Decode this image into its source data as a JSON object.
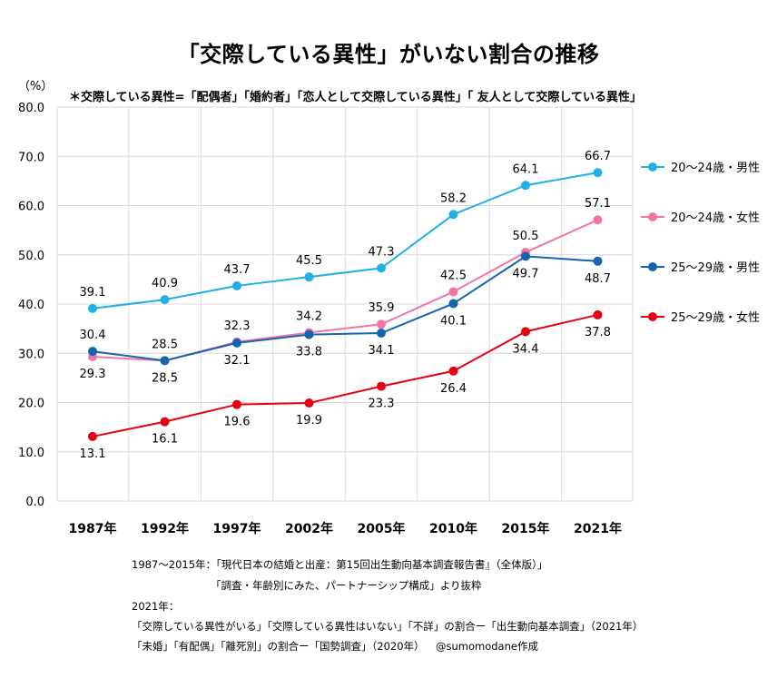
{
  "title": "「交際している異性」がいない割合の推移",
  "unit_label": "（%）",
  "note": "＊交際している異性=「配偶者」「婚約者」「恋人として交際している異性」「 友人として交際している異性」",
  "chart_data": {
    "type": "line",
    "categories": [
      "1987年",
      "1992年",
      "1997年",
      "2002年",
      "2005年",
      "2010年",
      "2015年",
      "2021年"
    ],
    "ylim": [
      0,
      80
    ],
    "yticks": [
      "0.0",
      "10.0",
      "20.0",
      "30.0",
      "40.0",
      "50.0",
      "60.0",
      "70.0",
      "80.0"
    ],
    "grid": true,
    "legend_position": "right",
    "series": [
      {
        "name": "20〜24歳・男性",
        "color": "#1fb0e6",
        "values": [
          39.1,
          40.9,
          43.7,
          45.5,
          47.3,
          58.2,
          64.1,
          66.7
        ],
        "labels": [
          "39.1",
          "40.9",
          "43.7",
          "45.5",
          "47.3",
          "58.2",
          "64.1",
          "66.7"
        ]
      },
      {
        "name": "20〜24歳・女性",
        "color": "#f274a6",
        "values": [
          29.3,
          28.5,
          32.3,
          34.2,
          35.9,
          42.5,
          50.5,
          57.1
        ],
        "labels": [
          "29.3",
          "28.5",
          "32.3",
          "34.2",
          "35.9",
          "42.5",
          "50.5",
          "57.1"
        ]
      },
      {
        "name": "25〜29歳・男性",
        "color": "#1464b0",
        "values": [
          30.4,
          28.5,
          32.1,
          33.8,
          34.1,
          40.1,
          49.7,
          48.7
        ],
        "labels": [
          "30.4",
          "28.5",
          "32.1",
          "33.8",
          "34.1",
          "40.1",
          "49.7",
          "48.7"
        ]
      },
      {
        "name": "25〜29歳・女性",
        "color": "#e60012",
        "values": [
          13.1,
          16.1,
          19.6,
          19.9,
          23.3,
          26.4,
          34.4,
          37.8
        ],
        "labels": [
          "13.1",
          "16.1",
          "19.6",
          "19.9",
          "23.3",
          "26.4",
          "34.4",
          "37.8"
        ]
      }
    ]
  },
  "sources": {
    "line1": "1987〜2015年：「現代日本の結婚と出産：第15回出生動向基本調査報告書』（全体版）」",
    "line2": "「調査・年齢別にみた、パートナーシップ構成」より抜粋",
    "line3": "2021年：",
    "line4": "「交際している異性がいる」「交際している異性はいない」「不詳」の割合ー「出生動向基本調査」（2021年）",
    "line5": "「未婚」「有配偶」「離死別」の割合ー「国勢調査」（2020年）",
    "credit": "@sumomodane作成"
  }
}
